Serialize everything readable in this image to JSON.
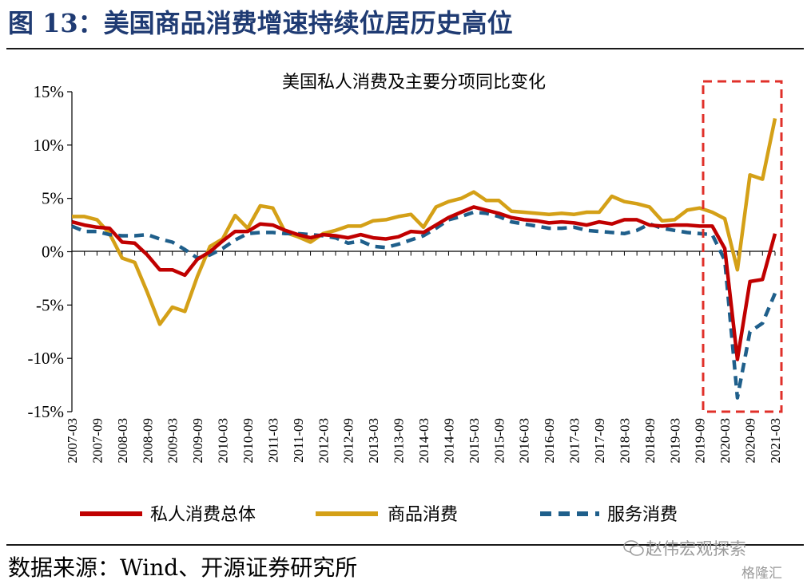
{
  "header": {
    "title": "图 13：美国商品消费增速持续位居历史高位"
  },
  "footer": {
    "source": "数据来源：Wind、开源证券研究所"
  },
  "watermark": {
    "text": "赵伟宏观探索",
    "text2": "格隆汇"
  },
  "colors": {
    "total": "#C00000",
    "goods": "#D4A017",
    "services": "#1F5F8B",
    "highlight": "#E0302A",
    "title": "#1F3B73"
  },
  "chart_data": {
    "type": "line",
    "title": "美国私人消费及主要分项同比变化",
    "ylim": [
      -15,
      15
    ],
    "y_ticks": [
      "15%",
      "10%",
      "5%",
      "0%",
      "-5%",
      "-10%",
      "-15%"
    ],
    "x_tick_labels": [
      "2007-03",
      "2007-09",
      "2008-03",
      "2008-09",
      "2009-03",
      "2009-09",
      "2010-03",
      "2010-09",
      "2011-03",
      "2011-09",
      "2012-03",
      "2012-09",
      "2013-03",
      "2013-09",
      "2014-03",
      "2014-09",
      "2015-03",
      "2015-09",
      "2016-03",
      "2016-09",
      "2017-03",
      "2017-09",
      "2018-03",
      "2018-09",
      "2019-03",
      "2019-09",
      "2020-03",
      "2020-09",
      "2021-03"
    ],
    "x": [
      "2007-03",
      "2007-06",
      "2007-09",
      "2007-12",
      "2008-03",
      "2008-06",
      "2008-09",
      "2008-12",
      "2009-03",
      "2009-06",
      "2009-09",
      "2009-12",
      "2010-03",
      "2010-06",
      "2010-09",
      "2010-12",
      "2011-03",
      "2011-06",
      "2011-09",
      "2011-12",
      "2012-03",
      "2012-06",
      "2012-09",
      "2012-12",
      "2013-03",
      "2013-06",
      "2013-09",
      "2013-12",
      "2014-03",
      "2014-06",
      "2014-09",
      "2014-12",
      "2015-03",
      "2015-06",
      "2015-09",
      "2015-12",
      "2016-03",
      "2016-06",
      "2016-09",
      "2016-12",
      "2017-03",
      "2017-06",
      "2017-09",
      "2017-12",
      "2018-03",
      "2018-06",
      "2018-09",
      "2018-12",
      "2019-03",
      "2019-06",
      "2019-09",
      "2019-12",
      "2020-03",
      "2020-06",
      "2020-09",
      "2020-12",
      "2021-03"
    ],
    "series": [
      {
        "name": "私人消费总体",
        "style": "solid",
        "values": [
          2.8,
          2.5,
          2.3,
          2.2,
          0.9,
          0.8,
          -0.3,
          -1.7,
          -1.7,
          -2.2,
          -0.7,
          0.0,
          1.0,
          1.9,
          1.9,
          2.6,
          2.5,
          2.0,
          1.6,
          1.3,
          1.6,
          1.5,
          1.3,
          1.6,
          1.3,
          1.2,
          1.4,
          1.9,
          1.8,
          2.5,
          3.2,
          3.7,
          4.2,
          3.9,
          3.6,
          3.2,
          3.0,
          2.9,
          2.7,
          2.8,
          2.7,
          2.5,
          2.8,
          2.6,
          3.0,
          3.0,
          2.5,
          2.4,
          2.5,
          2.5,
          2.4,
          2.4,
          0.3,
          -10.1,
          -2.8,
          -2.6,
          1.7
        ]
      },
      {
        "name": "商品消费",
        "style": "solid",
        "values": [
          3.3,
          3.3,
          3.0,
          1.7,
          -0.6,
          -1.0,
          -3.8,
          -6.8,
          -5.2,
          -5.6,
          -2.3,
          0.5,
          1.2,
          3.4,
          2.2,
          4.3,
          4.1,
          1.8,
          1.4,
          0.9,
          1.7,
          2.0,
          2.4,
          2.4,
          2.9,
          3.0,
          3.3,
          3.5,
          2.3,
          4.2,
          4.7,
          5.0,
          5.6,
          4.8,
          4.8,
          3.8,
          3.7,
          3.6,
          3.5,
          3.6,
          3.5,
          3.7,
          3.7,
          5.2,
          4.7,
          4.5,
          4.2,
          2.9,
          3.0,
          3.9,
          4.1,
          3.7,
          3.1,
          -1.7,
          7.2,
          6.8,
          12.5
        ]
      },
      {
        "name": "服务消费",
        "style": "dashed",
        "values": [
          2.4,
          1.9,
          1.9,
          1.6,
          1.5,
          1.5,
          1.6,
          1.2,
          0.9,
          0.2,
          -0.6,
          -0.3,
          0.3,
          1.1,
          1.7,
          1.8,
          1.8,
          1.7,
          1.7,
          1.6,
          1.5,
          1.3,
          0.8,
          1.0,
          0.5,
          0.4,
          0.7,
          1.1,
          1.5,
          2.2,
          3.0,
          3.3,
          3.7,
          3.6,
          3.3,
          2.8,
          2.6,
          2.4,
          2.2,
          2.2,
          2.3,
          2.0,
          1.9,
          1.8,
          1.7,
          2.0,
          2.6,
          2.2,
          2.0,
          1.8,
          1.7,
          1.6,
          -0.8,
          -13.7,
          -7.5,
          -6.7,
          -3.9
        ]
      }
    ],
    "annotation": "red dashed box highlighting 2020-03 to 2021-03",
    "legend": "bottom",
    "grid": false
  }
}
